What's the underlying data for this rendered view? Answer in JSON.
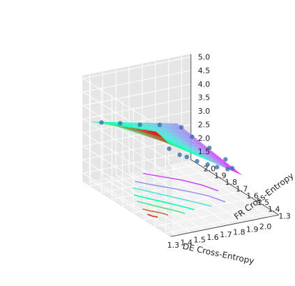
{
  "chart_data": {
    "type": "surface3d",
    "xlabel": "DE Cross-Entropy",
    "ylabel": "FR Cross-Entropy",
    "zlabel": "",
    "xlim": [
      1.25,
      2.07
    ],
    "ylim": [
      1.25,
      2.07
    ],
    "zlim": [
      1.2,
      5.1
    ],
    "x_ticks": [
      "1.3",
      "1.4",
      "1.5",
      "1.6",
      "1.7",
      "1.8",
      "1.9",
      "2.0"
    ],
    "y_ticks": [
      "1.3",
      "1.4",
      "1.5",
      "1.6",
      "1.7",
      "1.8",
      "1.9",
      "2.0"
    ],
    "z_ticks": [
      "1.5",
      "2.0",
      "2.5",
      "3.0",
      "3.5",
      "4.0",
      "4.5",
      "5.0"
    ],
    "colormap": "rainbow",
    "grid": true,
    "surface": {
      "x_range": [
        1.3,
        1.95
      ],
      "y_range": [
        1.45,
        2.05
      ],
      "corner_values": [
        {
          "x": 1.3,
          "y": 1.45,
          "z": 4.3
        },
        {
          "x": 1.95,
          "y": 1.45,
          "z": 2.3
        },
        {
          "x": 1.3,
          "y": 2.05,
          "z": 3.4
        },
        {
          "x": 1.95,
          "y": 2.05,
          "z": 2.7
        }
      ]
    },
    "points": [
      {
        "x": 1.4,
        "y": 1.45,
        "z": 3.8
      },
      {
        "x": 1.48,
        "y": 1.45,
        "z": 3.5
      },
      {
        "x": 1.55,
        "y": 1.47,
        "z": 3.3
      },
      {
        "x": 1.62,
        "y": 1.46,
        "z": 3.1
      },
      {
        "x": 1.7,
        "y": 1.46,
        "z": 2.9
      },
      {
        "x": 1.78,
        "y": 1.47,
        "z": 2.7
      },
      {
        "x": 1.86,
        "y": 1.47,
        "z": 2.55
      },
      {
        "x": 1.92,
        "y": 1.5,
        "z": 2.45
      },
      {
        "x": 1.95,
        "y": 1.6,
        "z": 2.5
      },
      {
        "x": 1.95,
        "y": 1.75,
        "z": 2.55
      },
      {
        "x": 1.94,
        "y": 1.9,
        "z": 2.6
      },
      {
        "x": 1.94,
        "y": 2.0,
        "z": 2.7
      },
      {
        "x": 1.35,
        "y": 2.02,
        "z": 3.4
      },
      {
        "x": 1.5,
        "y": 2.03,
        "z": 3.2
      },
      {
        "x": 1.65,
        "y": 2.03,
        "z": 3.0
      },
      {
        "x": 1.8,
        "y": 2.03,
        "z": 2.85
      }
    ],
    "contours": [
      {
        "z": 4.2,
        "path": [
          [
            1.32,
            1.55
          ],
          [
            1.33,
            1.52
          ],
          [
            1.35,
            1.5
          ]
        ]
      },
      {
        "z": 4.0,
        "path": [
          [
            1.34,
            1.62
          ],
          [
            1.37,
            1.58
          ],
          [
            1.4,
            1.55
          ],
          [
            1.43,
            1.5
          ]
        ]
      },
      {
        "z": 3.6,
        "path": [
          [
            1.38,
            1.72
          ],
          [
            1.42,
            1.66
          ],
          [
            1.46,
            1.6
          ],
          [
            1.5,
            1.55
          ],
          [
            1.54,
            1.48
          ]
        ]
      },
      {
        "z": 3.3,
        "path": [
          [
            1.42,
            1.8
          ],
          [
            1.46,
            1.74
          ],
          [
            1.52,
            1.66
          ],
          [
            1.58,
            1.58
          ],
          [
            1.63,
            1.5
          ]
        ]
      },
      {
        "z": 3.0,
        "path": [
          [
            1.48,
            1.88
          ],
          [
            1.54,
            1.8
          ],
          [
            1.6,
            1.72
          ],
          [
            1.66,
            1.64
          ],
          [
            1.72,
            1.56
          ],
          [
            1.76,
            1.5
          ]
        ]
      },
      {
        "z": 2.7,
        "path": [
          [
            1.55,
            1.95
          ],
          [
            1.62,
            1.87
          ],
          [
            1.7,
            1.79
          ],
          [
            1.78,
            1.7
          ],
          [
            1.84,
            1.62
          ],
          [
            1.88,
            1.52
          ]
        ]
      },
      {
        "z": 2.5,
        "path": [
          [
            1.67,
            2.02
          ],
          [
            1.75,
            1.94
          ],
          [
            1.83,
            1.86
          ],
          [
            1.9,
            1.76
          ],
          [
            1.94,
            1.66
          ]
        ]
      }
    ]
  }
}
